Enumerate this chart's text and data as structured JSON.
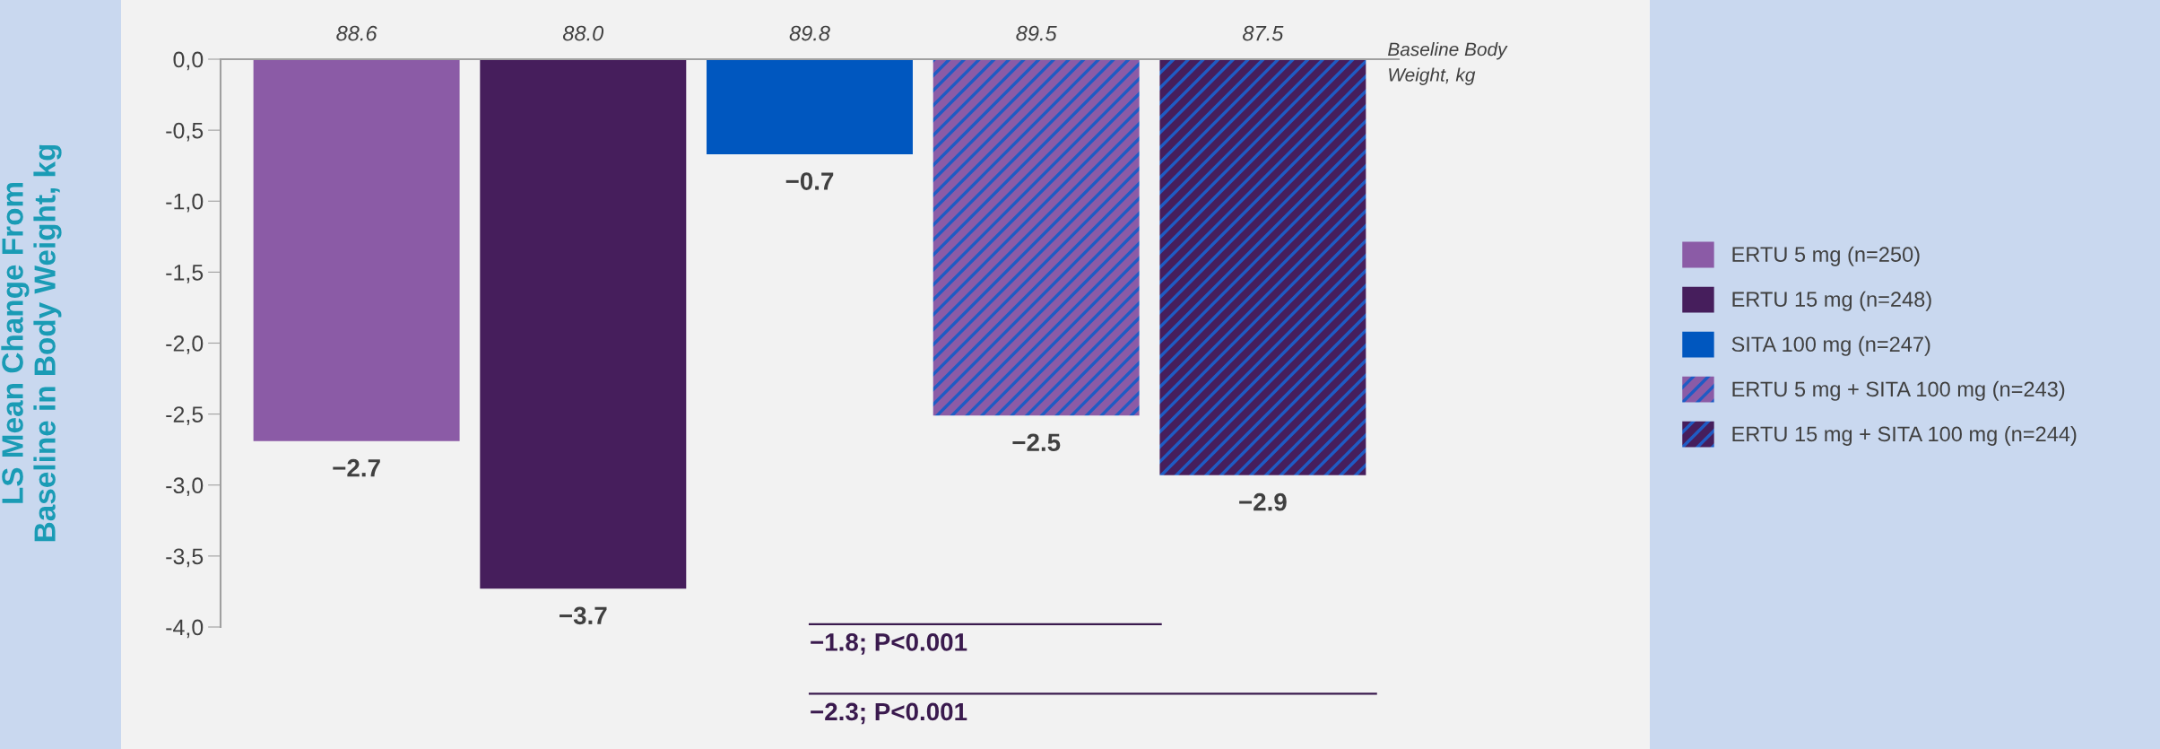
{
  "chart_data": {
    "type": "bar",
    "ylabel": "LS Mean Change From\nBaseline in Body Weight, kg",
    "categories": [
      null,
      null,
      null,
      null,
      null
    ],
    "series": [
      {
        "name": "ERTU 5 mg (n=250)",
        "color": "#8b5ba6",
        "values": [
          -2.69,
          null,
          null,
          null,
          null
        ],
        "value_labels": [
          "−2.7",
          null,
          null,
          null,
          null
        ]
      },
      {
        "name": "ERTU 15 mg (n=248)",
        "color": "#461e5c",
        "values": [
          null,
          -3.73,
          null,
          null,
          null
        ],
        "value_labels": [
          null,
          "−3.7",
          null,
          null,
          null
        ]
      },
      {
        "name": "SITA 100 mg (n=247)",
        "color": "#0057bf",
        "values": [
          null,
          null,
          -0.67,
          null,
          null
        ],
        "value_labels": [
          null,
          null,
          "−0.7",
          null,
          null
        ]
      },
      {
        "name": "ERTU 5 mg + SITA 100 mg (n=243)",
        "color": "#8b5ba6",
        "values": [
          null,
          null,
          null,
          -2.51,
          null
        ],
        "value_labels": [
          null,
          null,
          null,
          "−2.5",
          null
        ]
      },
      {
        "name": "ERTU 15 mg + SITA 100 mg (n=244)",
        "color": "#461e5c",
        "values": [
          null,
          null,
          null,
          null,
          -2.93
        ],
        "value_labels": [
          null,
          null,
          null,
          null,
          "−2.9"
        ]
      }
    ],
    "ylim": [
      -4.0,
      0.0
    ],
    "yticks": [
      {
        "value": 0.0,
        "label": "0,0"
      },
      {
        "value": -0.5,
        "label": "-0,5"
      },
      {
        "value": -1.0,
        "label": "-1,0"
      },
      {
        "value": -1.5,
        "label": "-1,5"
      },
      {
        "value": -2.0,
        "label": "-2,0"
      },
      {
        "value": -2.5,
        "label": "-2,5"
      },
      {
        "value": -3.0,
        "label": "-3,0"
      },
      {
        "value": -3.5,
        "label": "-3,5"
      },
      {
        "value": -4.0,
        "label": "-4,0"
      }
    ],
    "annotations": [
      "88.6",
      "88.0",
      "89.8",
      "89.5",
      "87.5",
      "Baseline Body\nWeight, kg",
      "−1.8; P<0.001",
      "−2.3; P<0.001"
    ],
    "legend": "right",
    "grid": false,
    "tick_labels": "y"
  }
}
